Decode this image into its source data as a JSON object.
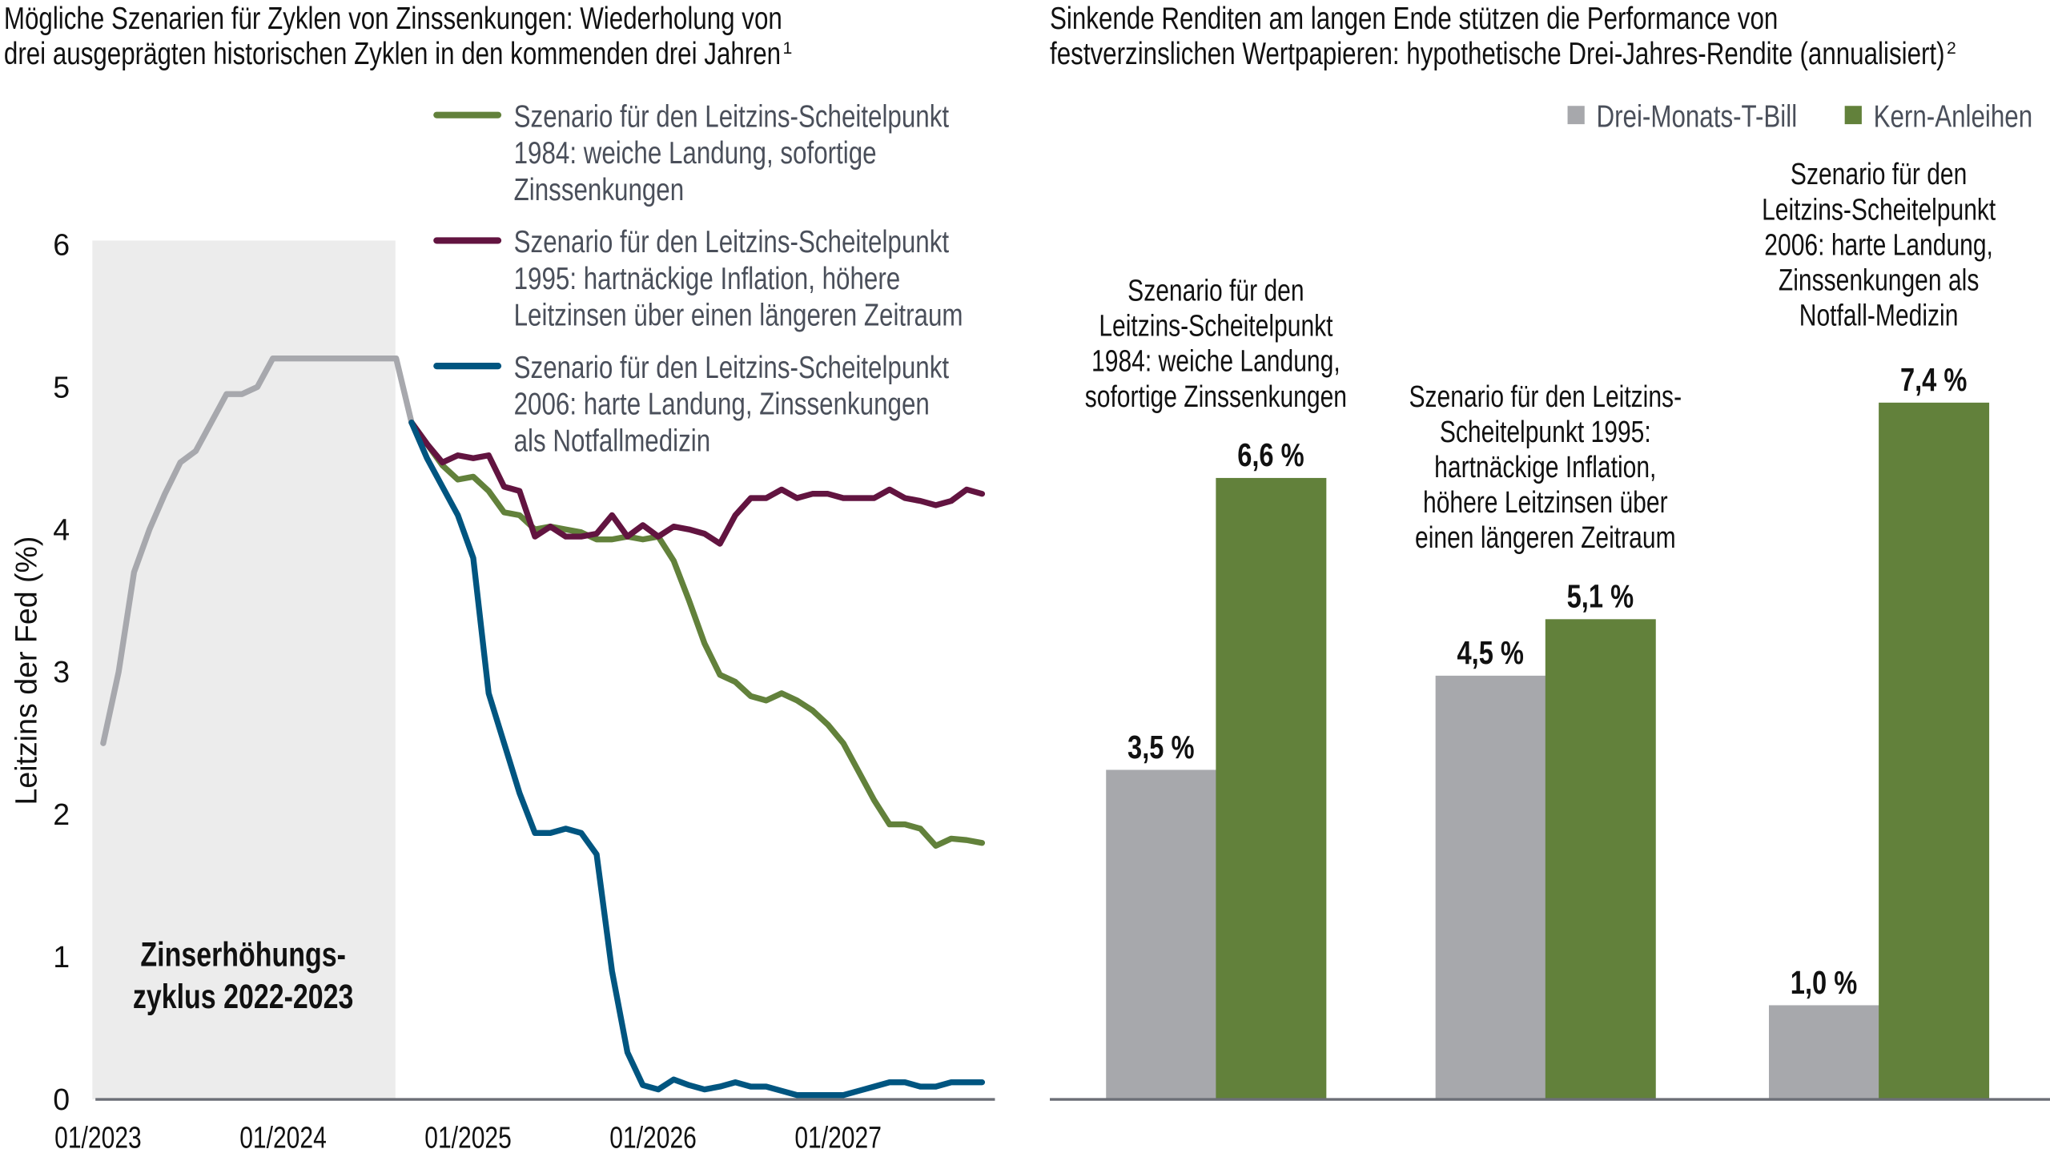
{
  "left_title": [
    "Mögliche Szenarien für Zyklen von Zinssenkungen: Wiederholung von",
    "drei ausgeprägten historischen Zyklen in den kommenden drei Jahren",
    "1"
  ],
  "right_title": [
    "Sinkende Renditen am langen Ende stützen die Performance von",
    "festverzinslichen Wertpapieren: hypothetische Drei-Jahres-Rendite (annualisiert)",
    "2"
  ],
  "colors": {
    "history": "#a7a8ad",
    "s1984": "#62813b",
    "s1995": "#621440",
    "s2006": "#005580",
    "shade": "#ececec",
    "tbill": "#a7a8ac",
    "core": "#62813b"
  },
  "chart_data": [
    {
      "type": "line",
      "ylabel": "Leitzins der Fed (%)",
      "ylim": [
        0,
        6
      ],
      "yticks": [
        "0",
        "1",
        "2",
        "3",
        "4",
        "5",
        "6"
      ],
      "x_unit": "months since 01/2023",
      "xticks": [
        {
          "label": "01/2023",
          "month": 0
        },
        {
          "label": "01/2024",
          "month": 12
        },
        {
          "label": "01/2025",
          "month": 24
        },
        {
          "label": "01/2026",
          "month": 36
        },
        {
          "label": "01/2027",
          "month": 48
        }
      ],
      "xlim": [
        0,
        58
      ],
      "highlight": {
        "label": [
          "Zinserhöhungs-",
          "zyklus 2022-2023"
        ],
        "from_month": -0.2,
        "to_month": 19.2
      },
      "history": {
        "start_month": 0,
        "values": [
          2.5,
          3.0,
          3.7,
          4.0,
          4.25,
          4.47,
          4.55,
          4.75,
          4.95,
          4.95,
          5.0,
          5.2,
          5.2,
          5.2,
          5.2,
          5.2,
          5.2,
          5.2,
          5.2,
          5.2,
          4.75
        ]
      },
      "series": [
        {
          "key": "s1984",
          "name": [
            "Szenario für den Leitzins-Scheitelpunkt",
            "1984: weiche Landung, sofortige",
            "Zinssenkungen"
          ],
          "start_month": 20,
          "values": [
            4.75,
            4.6,
            4.45,
            4.35,
            4.37,
            4.27,
            4.12,
            4.1,
            4.0,
            4.02,
            4.0,
            3.98,
            3.93,
            3.93,
            3.95,
            3.93,
            3.95,
            3.78,
            3.5,
            3.2,
            2.98,
            2.93,
            2.83,
            2.8,
            2.85,
            2.8,
            2.73,
            2.63,
            2.5,
            2.3,
            2.1,
            1.93,
            1.93,
            1.9,
            1.78,
            1.83,
            1.82,
            1.8
          ]
        },
        {
          "key": "s1995",
          "name": [
            "Szenario für den Leitzins-Scheitelpunkt",
            "1995: hartnäckige Inflation, höhere",
            "Leitzinsen über einen längeren Zeitraum"
          ],
          "start_month": 20,
          "values": [
            4.75,
            4.6,
            4.47,
            4.52,
            4.5,
            4.52,
            4.3,
            4.27,
            3.95,
            4.02,
            3.95,
            3.95,
            3.97,
            4.1,
            3.95,
            4.03,
            3.95,
            4.02,
            4.0,
            3.97,
            3.9,
            4.1,
            4.22,
            4.22,
            4.28,
            4.22,
            4.25,
            4.25,
            4.22,
            4.22,
            4.22,
            4.28,
            4.22,
            4.2,
            4.17,
            4.2,
            4.28,
            4.25
          ]
        },
        {
          "key": "s2006",
          "name": [
            "Szenario für den Leitzins-Scheitelpunkt",
            "2006: harte Landung, Zinssenkungen",
            "als Notfallmedizin"
          ],
          "start_month": 20,
          "values": [
            4.75,
            4.5,
            4.3,
            4.1,
            3.8,
            2.85,
            2.5,
            2.15,
            1.87,
            1.87,
            1.9,
            1.87,
            1.72,
            0.9,
            0.33,
            0.1,
            0.07,
            0.14,
            0.1,
            0.07,
            0.09,
            0.12,
            0.09,
            0.09,
            0.06,
            0.03,
            0.03,
            0.03,
            0.03,
            0.06,
            0.09,
            0.12,
            0.12,
            0.09,
            0.09,
            0.12,
            0.12,
            0.12
          ]
        }
      ]
    },
    {
      "type": "bar",
      "ylim": [
        0,
        7.4
      ],
      "legend": [
        {
          "key": "tbill",
          "label": "Drei-Monats-T-Bill"
        },
        {
          "key": "core",
          "label": "Kern-Anleihen"
        }
      ],
      "legend_position": "top-right",
      "groups": [
        {
          "label": [
            "Szenario für den",
            "Leitzins-Scheitelpunkt",
            "1984: weiche Landung,",
            "sofortige Zinssenkungen"
          ],
          "tbill": 3.5,
          "core": 6.6,
          "tbill_label": "3,5 %",
          "core_label": "6,6 %"
        },
        {
          "label": [
            "Szenario für den Leitzins-",
            "Scheitelpunkt 1995:",
            "hartnäckige Inflation,",
            "höhere Leitzinsen über",
            "einen längeren Zeitraum"
          ],
          "tbill": 4.5,
          "core": 5.1,
          "tbill_label": "4,5 %",
          "core_label": "5,1 %"
        },
        {
          "label": [
            "Szenario für den",
            "Leitzins-Scheitelpunkt",
            "2006: harte Landung,",
            "Zinssenkungen als",
            "Notfall-Medizin"
          ],
          "tbill": 1.0,
          "core": 7.4,
          "tbill_label": "1,0 %",
          "core_label": "7,4 %"
        }
      ]
    }
  ]
}
